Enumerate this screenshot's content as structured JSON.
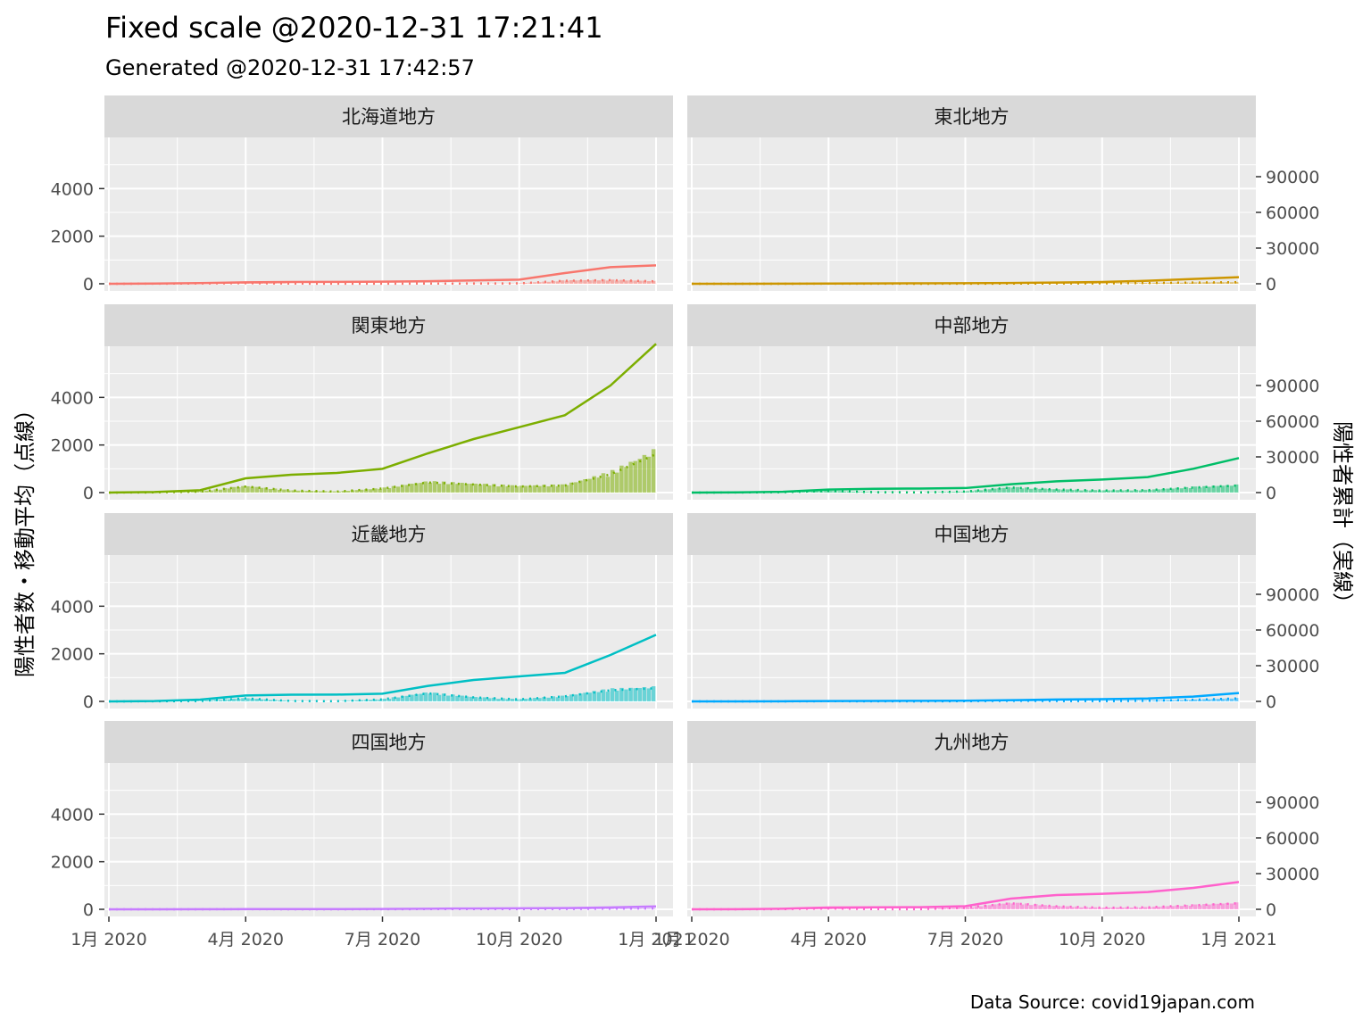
{
  "title": "Fixed scale @2020-12-31 17:21:41",
  "subtitle": "Generated @2020-12-31 17:42:57",
  "caption": "Data Source: covid19japan.com",
  "chart_data": {
    "type": "bar",
    "facet_layout": "2 columns x 4 rows",
    "y_left_label": "陽性者数・移動平均（点線）",
    "y_right_label": "陽性者累計（実線）",
    "x_ticks": [
      "1月 2020",
      "4月 2020",
      "7月 2020",
      "10月 2020",
      "1月 2021"
    ],
    "y_left_ticks": [
      "0",
      "2000",
      "4000"
    ],
    "y_right_ticks": [
      "0",
      "30000",
      "60000",
      "90000"
    ],
    "y_left_range": [
      0,
      6000
    ],
    "y_right_range": [
      0,
      120000
    ],
    "x_range_months": [
      0,
      12
    ],
    "series_months": [
      0,
      1,
      2,
      3,
      4,
      5,
      6,
      7,
      8,
      9,
      10,
      11,
      12
    ],
    "panels": [
      {
        "name": "北海道地方",
        "color": "#F8766D",
        "daily": [
          0,
          5,
          15,
          30,
          10,
          5,
          5,
          10,
          15,
          20,
          150,
          180,
          120
        ],
        "cumulative": [
          0,
          200,
          600,
          1200,
          1500,
          1600,
          1800,
          2200,
          2800,
          3500,
          9000,
          14000,
          15500
        ]
      },
      {
        "name": "東北地方",
        "color": "#CD9600",
        "daily": [
          0,
          0,
          2,
          5,
          5,
          2,
          5,
          10,
          15,
          20,
          40,
          60,
          80
        ],
        "cumulative": [
          0,
          20,
          80,
          200,
          300,
          350,
          450,
          700,
          1000,
          1500,
          2500,
          4000,
          5500
        ]
      },
      {
        "name": "関東地方",
        "color": "#7CAE00",
        "daily": [
          0,
          10,
          50,
          300,
          100,
          50,
          200,
          500,
          400,
          300,
          350,
          900,
          1900
        ],
        "cumulative": [
          0,
          500,
          2000,
          12000,
          15000,
          16500,
          20000,
          33000,
          45000,
          55000,
          65000,
          90000,
          125000
        ]
      },
      {
        "name": "中部地方",
        "color": "#00BE67",
        "daily": [
          0,
          5,
          20,
          80,
          20,
          10,
          50,
          250,
          150,
          100,
          120,
          250,
          350
        ],
        "cumulative": [
          0,
          200,
          700,
          2500,
          3200,
          3400,
          3800,
          7000,
          9500,
          11000,
          13000,
          20000,
          29000
        ]
      },
      {
        "name": "近畿地方",
        "color": "#00BFC4",
        "daily": [
          0,
          5,
          20,
          150,
          20,
          10,
          100,
          400,
          200,
          100,
          250,
          550,
          650
        ],
        "cumulative": [
          0,
          300,
          1500,
          5000,
          5600,
          5700,
          6500,
          13000,
          18000,
          21000,
          24000,
          39000,
          56000
        ]
      },
      {
        "name": "中国地方",
        "color": "#00A9FF",
        "daily": [
          0,
          0,
          2,
          10,
          5,
          2,
          10,
          30,
          20,
          15,
          30,
          80,
          150
        ],
        "cumulative": [
          0,
          30,
          100,
          300,
          400,
          450,
          600,
          1000,
          1600,
          1900,
          2400,
          4000,
          7000
        ]
      },
      {
        "name": "四国地方",
        "color": "#C77CFF",
        "daily": [
          0,
          0,
          2,
          5,
          2,
          1,
          5,
          10,
          10,
          10,
          15,
          30,
          40
        ],
        "cumulative": [
          0,
          20,
          60,
          150,
          200,
          220,
          280,
          500,
          700,
          850,
          1000,
          1600,
          2400
        ]
      },
      {
        "name": "九州地方",
        "color": "#FF61CC",
        "daily": [
          0,
          2,
          10,
          40,
          10,
          5,
          80,
          300,
          150,
          80,
          100,
          200,
          300
        ],
        "cumulative": [
          0,
          100,
          500,
          1500,
          1700,
          1800,
          2600,
          9000,
          12000,
          13000,
          14500,
          18000,
          23000
        ]
      }
    ]
  }
}
